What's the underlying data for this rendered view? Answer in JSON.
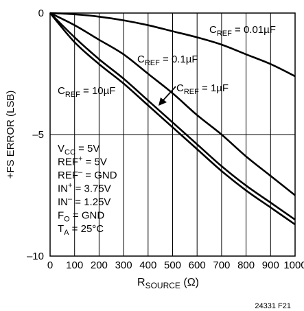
{
  "chart_data": {
    "type": "line",
    "title": "",
    "xlabel": {
      "main": "R",
      "sub": "SOURCE",
      "unit": " (Ω)"
    },
    "ylabel": "+FS ERROR (LSB)",
    "xlim": [
      0,
      1000
    ],
    "ylim": [
      -10,
      0
    ],
    "x_ticks": [
      0,
      100,
      200,
      300,
      400,
      500,
      600,
      700,
      800,
      900,
      1000
    ],
    "x_tick_labels": [
      "0",
      "100",
      "200",
      "300",
      "400",
      "500",
      "600",
      "700",
      "800",
      "900",
      "1000"
    ],
    "y_ticks": [
      0,
      -5,
      -10
    ],
    "y_tick_labels": [
      "0",
      "–5",
      "–10"
    ],
    "grid": {
      "vertical": true,
      "horizontal": [
        -5
      ]
    },
    "series": [
      {
        "name": "C_REF = 0.01µF",
        "label": {
          "main": "C",
          "sub": "REF",
          "rest": " = 0.01µF"
        },
        "x": [
          0,
          100,
          200,
          300,
          400,
          500,
          600,
          700,
          800,
          900,
          1000
        ],
        "y": [
          0,
          -0.05,
          -0.15,
          -0.3,
          -0.5,
          -0.75,
          -1.0,
          -1.3,
          -1.7,
          -2.1,
          -2.6
        ]
      },
      {
        "name": "C_REF = 0.1µF",
        "label": {
          "main": "C",
          "sub": "REF",
          "rest": " = 0.1µF"
        },
        "x": [
          0,
          100,
          200,
          300,
          400,
          500,
          600,
          700,
          800,
          900,
          1000
        ],
        "y": [
          0,
          -0.5,
          -1.1,
          -1.7,
          -2.5,
          -3.3,
          -4.2,
          -5.0,
          -5.9,
          -6.7,
          -7.5
        ]
      },
      {
        "name": "C_REF = 1µF",
        "label": {
          "main": "C",
          "sub": "REF",
          "rest": " = 1µF"
        },
        "x": [
          0,
          100,
          200,
          300,
          400,
          500,
          600,
          700,
          800,
          900,
          1000
        ],
        "y": [
          0,
          -1.0,
          -1.9,
          -2.7,
          -3.6,
          -4.5,
          -5.4,
          -6.3,
          -7.1,
          -7.8,
          -8.5
        ]
      },
      {
        "name": "C_REF = 10µF",
        "label": {
          "main": "C",
          "sub": "REF",
          "rest": " = 10µF"
        },
        "x": [
          0,
          100,
          200,
          300,
          400,
          500,
          600,
          700,
          800,
          900,
          1000
        ],
        "y": [
          0,
          -1.2,
          -2.1,
          -2.9,
          -3.8,
          -4.7,
          -5.6,
          -6.5,
          -7.3,
          -8.0,
          -8.7
        ]
      }
    ],
    "conditions": [
      {
        "main": "V",
        "sub": "CC",
        "sup": "",
        "rest": " = 5V"
      },
      {
        "main": "REF",
        "sub": "",
        "sup": "+",
        "rest": " = 5V"
      },
      {
        "main": "REF",
        "sub": "",
        "sup": "–",
        "rest": " = GND"
      },
      {
        "main": "IN",
        "sub": "",
        "sup": "+",
        "rest": " = 3.75V"
      },
      {
        "main": "IN",
        "sub": "",
        "sup": "–",
        "rest": " = 1.25V"
      },
      {
        "main": "F",
        "sub": "O",
        "sup": "",
        "rest": " = GND"
      },
      {
        "main": "T",
        "sub": "A",
        "sup": "",
        "rest": " = 25°C"
      }
    ],
    "figure_id": "24331 F21"
  }
}
